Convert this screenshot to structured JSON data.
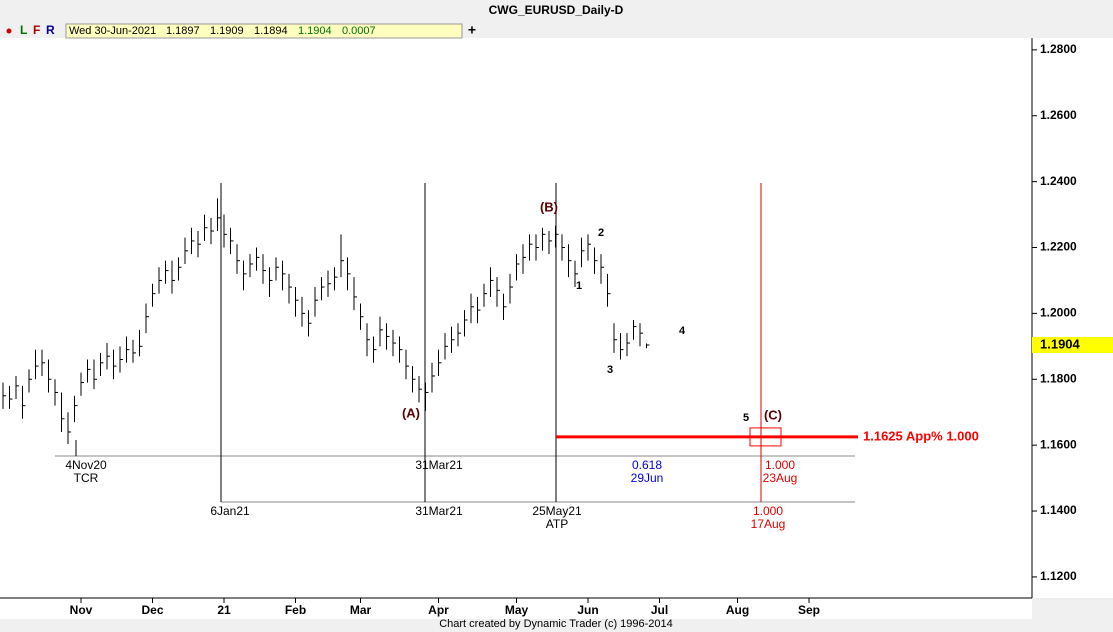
{
  "title": "CWG_EURUSD_Daily-D",
  "toolbar": {
    "buttons": [
      "L",
      "F",
      "R"
    ],
    "date": "Wed 30-Jun-2021",
    "values": [
      "1.1897",
      "1.1909",
      "1.1894",
      "1.1904",
      "0.0007"
    ],
    "plus": "+"
  },
  "chart_data": {
    "type": "ohlc",
    "color": "#000000",
    "high": [
      1.179,
      1.178,
      1.181,
      1.178,
      1.183,
      1.189,
      1.189,
      1.186,
      1.18,
      1.176,
      1.17,
      1.175,
      1.182,
      1.186,
      1.186,
      1.188,
      1.191,
      1.189,
      1.19,
      1.193,
      1.192,
      1.195,
      1.203,
      1.209,
      1.214,
      1.216,
      1.216,
      1.217,
      1.223,
      1.226,
      1.225,
      1.23,
      1.229,
      1.2349,
      1.23,
      1.226,
      1.221,
      1.216,
      1.218,
      1.22,
      1.218,
      1.214,
      1.217,
      1.216,
      1.212,
      1.208,
      1.205,
      1.201,
      1.208,
      1.211,
      1.213,
      1.214,
      1.224,
      1.217,
      1.211,
      1.203,
      1.197,
      1.193,
      1.199,
      1.197,
      1.195,
      1.193,
      1.189,
      1.184,
      1.181,
      1.179,
      1.185,
      1.189,
      1.194,
      1.196,
      1.197,
      1.201,
      1.206,
      1.205,
      1.209,
      1.214,
      1.211,
      1.206,
      1.212,
      1.218,
      1.221,
      1.224,
      1.224,
      1.226,
      1.225,
      1.2266,
      1.224,
      1.221,
      1.216,
      1.223,
      1.224,
      1.22,
      1.218,
      1.212,
      1.197,
      1.194,
      1.194,
      1.198,
      1.197,
      1.1909
    ],
    "low": [
      1.171,
      1.171,
      1.174,
      1.168,
      1.176,
      1.18,
      1.181,
      1.176,
      1.172,
      1.164,
      1.1603,
      1.167,
      1.175,
      1.179,
      1.177,
      1.181,
      1.183,
      1.18,
      1.182,
      1.185,
      1.185,
      1.187,
      1.194,
      1.202,
      1.206,
      1.209,
      1.206,
      1.21,
      1.215,
      1.218,
      1.217,
      1.222,
      1.221,
      1.225,
      1.22,
      1.218,
      1.212,
      1.207,
      1.211,
      1.213,
      1.209,
      1.205,
      1.21,
      1.207,
      1.203,
      1.199,
      1.196,
      1.193,
      1.199,
      1.204,
      1.205,
      1.207,
      1.211,
      1.207,
      1.201,
      1.195,
      1.187,
      1.185,
      1.19,
      1.189,
      1.187,
      1.185,
      1.18,
      1.176,
      1.173,
      1.1704,
      1.176,
      1.181,
      1.186,
      1.188,
      1.19,
      1.193,
      1.197,
      1.197,
      1.202,
      1.205,
      1.202,
      1.198,
      1.203,
      1.21,
      1.212,
      1.216,
      1.216,
      1.219,
      1.218,
      1.22,
      1.216,
      1.211,
      1.208,
      1.214,
      1.216,
      1.212,
      1.209,
      1.202,
      1.188,
      1.186,
      1.187,
      1.192,
      1.19,
      1.1894
    ],
    "close": [
      1.175,
      1.174,
      1.178,
      1.172,
      1.18,
      1.184,
      1.185,
      1.18,
      1.176,
      1.168,
      1.164,
      1.172,
      1.179,
      1.183,
      1.18,
      1.185,
      1.187,
      1.184,
      1.186,
      1.189,
      1.188,
      1.19,
      1.199,
      1.206,
      1.21,
      1.213,
      1.21,
      1.214,
      1.219,
      1.222,
      1.221,
      1.226,
      1.225,
      1.229,
      1.224,
      1.222,
      1.216,
      1.212,
      1.215,
      1.217,
      1.213,
      1.21,
      1.214,
      1.212,
      1.208,
      1.204,
      1.2,
      1.197,
      1.204,
      1.208,
      1.209,
      1.211,
      1.216,
      1.212,
      1.205,
      1.199,
      1.192,
      1.189,
      1.195,
      1.193,
      1.191,
      1.189,
      1.184,
      1.18,
      1.177,
      1.176,
      1.181,
      1.185,
      1.19,
      1.192,
      1.194,
      1.198,
      1.202,
      1.201,
      1.206,
      1.21,
      1.207,
      1.202,
      1.208,
      1.215,
      1.217,
      1.221,
      1.22,
      1.224,
      1.222,
      1.224,
      1.22,
      1.216,
      1.212,
      1.219,
      1.221,
      1.216,
      1.214,
      1.206,
      1.192,
      1.189,
      1.191,
      1.196,
      1.194,
      1.1904
    ],
    "xlim": [
      -0.5,
      131
    ],
    "xticks": [
      {
        "value": 12,
        "label": "Nov"
      },
      {
        "value": 23,
        "label": "Dec"
      },
      {
        "value": 34,
        "label": "21"
      },
      {
        "value": 45,
        "label": "Feb"
      },
      {
        "value": 55,
        "label": "Mar"
      },
      {
        "value": 67,
        "label": "Apr"
      },
      {
        "value": 79,
        "label": "May"
      },
      {
        "value": 90,
        "label": "Jun"
      },
      {
        "value": 101,
        "label": "Jul"
      },
      {
        "value": 113,
        "label": "Aug"
      },
      {
        "value": 124,
        "label": "Sep"
      }
    ],
    "ylim": [
      1.1136,
      1.2836
    ],
    "yticks": [
      {
        "value": 1.28,
        "label": "1.2800"
      },
      {
        "value": 1.26,
        "label": "1.2600"
      },
      {
        "value": 1.24,
        "label": "1.2400"
      },
      {
        "value": 1.22,
        "label": "1.2200"
      },
      {
        "value": 1.2,
        "label": "1.2000"
      },
      {
        "value": 1.18,
        "label": "1.1800"
      },
      {
        "value": 1.16,
        "label": "1.1600"
      },
      {
        "value": 1.14,
        "label": "1.1400"
      },
      {
        "value": 1.12,
        "label": "1.1200"
      }
    ],
    "current_price_color": "#ffff00",
    "target": {
      "value": 1.1625,
      "label": "1.1625 App% 1.000",
      "color": "#ff0000"
    },
    "wave_labels": [
      "(A)",
      "(B)",
      "(C)",
      "1",
      "2",
      "3",
      "4",
      "5"
    ],
    "time_markers": {
      "upper": [
        [
          "4Nov20",
          "TCR"
        ],
        [
          "31Mar21"
        ],
        [
          "0.618",
          "29Jun"
        ],
        [
          "1.000",
          "23Aug"
        ]
      ],
      "lower": [
        [
          "6Jan21"
        ],
        [
          "31Mar21"
        ],
        [
          "25May21",
          "ATP"
        ],
        [
          "1.000",
          "17Aug"
        ]
      ]
    }
  },
  "footer": "Chart created by Dynamic Trader  (c) 1996-2014"
}
